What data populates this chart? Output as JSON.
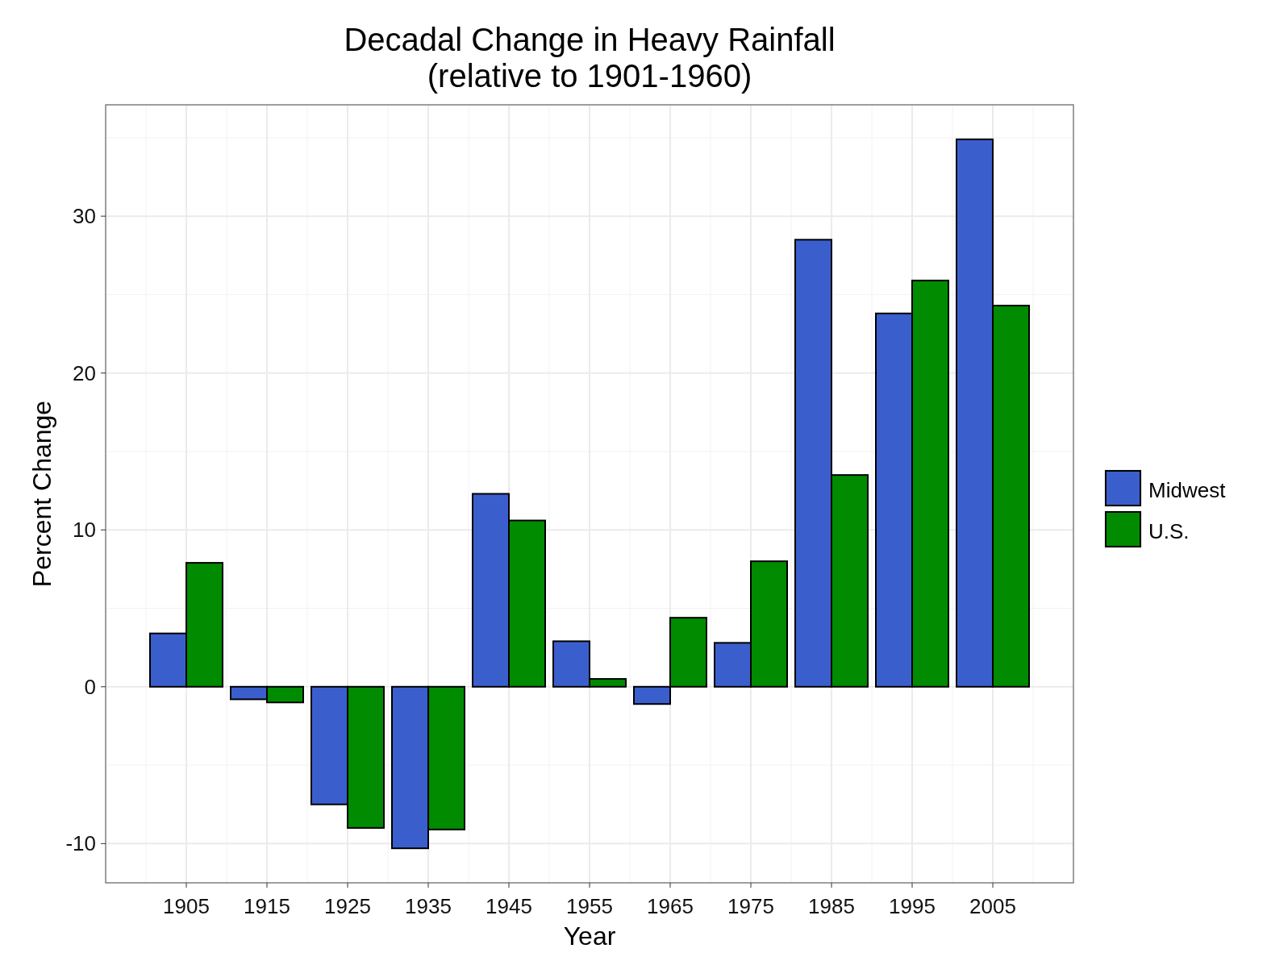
{
  "chart_data": {
    "type": "bar",
    "title": "Decadal Change in Heavy Rainfall\n(relative to 1901-1960)",
    "xlabel": "Year",
    "ylabel": "Percent Change",
    "x": [
      1905,
      1915,
      1925,
      1935,
      1945,
      1955,
      1965,
      1975,
      1985,
      1995,
      2005
    ],
    "series": [
      {
        "name": "Midwest",
        "color": "#3a5fcd",
        "values": [
          3.4,
          -0.8,
          -7.5,
          -10.3,
          12.3,
          2.9,
          -1.1,
          2.8,
          28.5,
          23.8,
          34.9
        ]
      },
      {
        "name": "U.S.",
        "color": "#008b00",
        "values": [
          7.9,
          -1.0,
          -9.0,
          -9.1,
          10.6,
          0.5,
          4.4,
          8.0,
          13.5,
          25.9,
          24.3
        ]
      }
    ],
    "xlim": [
      1895,
      2015
    ],
    "xticks": [
      1905,
      1915,
      1925,
      1935,
      1945,
      1955,
      1965,
      1975,
      1985,
      1995,
      2005
    ],
    "ylim": [
      -12.5,
      37.1
    ],
    "yticks": [
      -10,
      0,
      10,
      20,
      30
    ],
    "grid": true,
    "legend": "right"
  }
}
